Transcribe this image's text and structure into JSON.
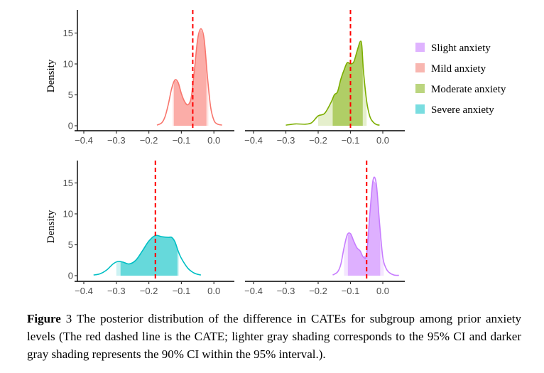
{
  "chart_data": {
    "type": "area",
    "title": "",
    "xlabel": "",
    "ylabel": "Density",
    "xlim": [
      -0.42,
      0.06
    ],
    "ylim": [
      0,
      18
    ],
    "x_ticks": [
      -0.4,
      -0.3,
      -0.2,
      -0.1,
      0.0
    ],
    "x_tick_labels": [
      "−0.4",
      "−0.3",
      "−0.2",
      "−0.1",
      "0.0"
    ],
    "y_ticks": [
      0,
      5,
      10,
      15
    ],
    "y_tick_labels": [
      "0",
      "5",
      "10",
      "15"
    ],
    "legend_position": "right",
    "legend": [
      {
        "label": "Slight anxiety",
        "color": "#DFB3FF"
      },
      {
        "label": "Mild anxiety",
        "color": "#F8B6B0"
      },
      {
        "label": "Moderate anxiety",
        "color": "#BBD57F"
      },
      {
        "label": "Severe anxiety",
        "color": "#79DDE0"
      }
    ],
    "panels": [
      {
        "name": "Mild anxiety",
        "position": "top-left",
        "line_color": "#F8766D",
        "fill_color": "#F8766D",
        "cate": -0.065,
        "ci95": [
          -0.127,
          -0.017
        ],
        "ci90": [
          -0.123,
          -0.023
        ],
        "curve": [
          [
            -0.175,
            0.1
          ],
          [
            -0.16,
            0.5
          ],
          [
            -0.15,
            1.5
          ],
          [
            -0.14,
            3.5
          ],
          [
            -0.13,
            6.0
          ],
          [
            -0.12,
            7.4
          ],
          [
            -0.11,
            7.0
          ],
          [
            -0.1,
            5.2
          ],
          [
            -0.09,
            3.9
          ],
          [
            -0.08,
            3.4
          ],
          [
            -0.07,
            4.5
          ],
          [
            -0.06,
            9.0
          ],
          [
            -0.05,
            14.0
          ],
          [
            -0.04,
            15.7
          ],
          [
            -0.03,
            14.0
          ],
          [
            -0.02,
            8.0
          ],
          [
            -0.01,
            3.0
          ],
          [
            0.0,
            0.9
          ],
          [
            0.01,
            0.3
          ],
          [
            0.025,
            0.1
          ]
        ]
      },
      {
        "name": "Moderate anxiety",
        "position": "top-right",
        "line_color": "#7CAE00",
        "fill_color": "#7CAE00",
        "cate": -0.1,
        "ci95": [
          -0.2,
          -0.05
        ],
        "ci90": [
          -0.155,
          -0.062
        ],
        "curve": [
          [
            -0.3,
            0.1
          ],
          [
            -0.27,
            0.3
          ],
          [
            -0.24,
            0.25
          ],
          [
            -0.22,
            0.5
          ],
          [
            -0.2,
            1.6
          ],
          [
            -0.18,
            2.0
          ],
          [
            -0.16,
            3.8
          ],
          [
            -0.15,
            5.0
          ],
          [
            -0.14,
            5.5
          ],
          [
            -0.13,
            7.5
          ],
          [
            -0.12,
            9.0
          ],
          [
            -0.11,
            10.2
          ],
          [
            -0.1,
            10.0
          ],
          [
            -0.09,
            10.3
          ],
          [
            -0.08,
            12.0
          ],
          [
            -0.07,
            13.6
          ],
          [
            -0.065,
            13.0
          ],
          [
            -0.06,
            9.0
          ],
          [
            -0.05,
            4.0
          ],
          [
            -0.04,
            1.5
          ],
          [
            -0.03,
            0.6
          ],
          [
            -0.02,
            0.2
          ],
          [
            -0.01,
            0.1
          ]
        ]
      },
      {
        "name": "Severe anxiety",
        "position": "bottom-left",
        "line_color": "#00BFC4",
        "fill_color": "#00BFC4",
        "cate": -0.18,
        "ci95": [
          -0.3,
          -0.108
        ],
        "ci90": [
          -0.287,
          -0.112
        ],
        "curve": [
          [
            -0.37,
            0.1
          ],
          [
            -0.35,
            0.3
          ],
          [
            -0.33,
            0.9
          ],
          [
            -0.31,
            1.9
          ],
          [
            -0.295,
            2.3
          ],
          [
            -0.28,
            2.2
          ],
          [
            -0.26,
            1.9
          ],
          [
            -0.24,
            2.5
          ],
          [
            -0.22,
            4.0
          ],
          [
            -0.2,
            5.6
          ],
          [
            -0.18,
            6.5
          ],
          [
            -0.16,
            6.3
          ],
          [
            -0.14,
            6.2
          ],
          [
            -0.13,
            6.2
          ],
          [
            -0.12,
            5.5
          ],
          [
            -0.11,
            4.0
          ],
          [
            -0.1,
            2.8
          ],
          [
            -0.08,
            1.2
          ],
          [
            -0.06,
            0.4
          ],
          [
            -0.04,
            0.1
          ]
        ]
      },
      {
        "name": "Slight anxiety",
        "position": "bottom-right",
        "line_color": "#C77CFF",
        "fill_color": "#C77CFF",
        "cate": -0.05,
        "ci95": [
          -0.12,
          0.003
        ],
        "ci90": [
          -0.108,
          -0.008
        ],
        "curve": [
          [
            -0.155,
            0.1
          ],
          [
            -0.14,
            0.6
          ],
          [
            -0.13,
            1.8
          ],
          [
            -0.12,
            4.5
          ],
          [
            -0.11,
            6.6
          ],
          [
            -0.1,
            6.8
          ],
          [
            -0.09,
            5.6
          ],
          [
            -0.08,
            4.5
          ],
          [
            -0.07,
            4.0
          ],
          [
            -0.06,
            3.0
          ],
          [
            -0.05,
            3.5
          ],
          [
            -0.04,
            10.0
          ],
          [
            -0.03,
            15.5
          ],
          [
            -0.02,
            14.8
          ],
          [
            -0.01,
            8.5
          ],
          [
            0.0,
            3.0
          ],
          [
            0.01,
            1.2
          ],
          [
            0.02,
            0.5
          ],
          [
            0.035,
            0.1
          ],
          [
            0.05,
            0.05
          ]
        ]
      }
    ],
    "reference_line": {
      "style": "dashed",
      "color": "#FF0000",
      "meaning": "CATE"
    }
  },
  "caption": {
    "label": "Figure",
    "number": " 3",
    "text": " The posterior distribution of the difference in CATEs for subgroup among prior anxiety levels (The red dashed line is the CATE; lighter gray shading corresponds to the 95% CI and darker gray shading represents the 90% CI within the 95% interval.)."
  }
}
